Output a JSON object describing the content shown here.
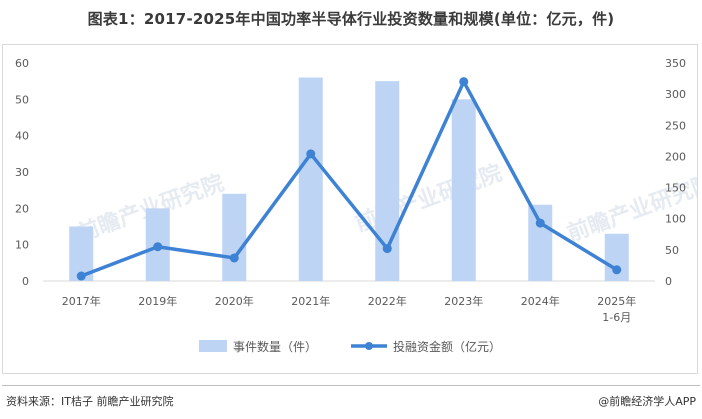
{
  "title": "图表1：2017-2025年中国功率半导体行业投资数量和规模(单位：亿元，件)",
  "source": "资料来源：IT桔子 前瞻产业研究院",
  "brand": "@前瞻经济学人APP",
  "watermark": "前瞻产业研究院",
  "colors": {
    "bar": "#bdd4f4",
    "line": "#3d82d4"
  },
  "chart_data": {
    "type": "bar+line",
    "categories": [
      [
        "2017年"
      ],
      [
        "2019年"
      ],
      [
        "2020年"
      ],
      [
        "2021年"
      ],
      [
        "2022年"
      ],
      [
        "2023年"
      ],
      [
        "2024年"
      ],
      [
        "2025年",
        "1-6月"
      ]
    ],
    "series": [
      {
        "name": "事件数量（件）",
        "type": "bar",
        "axis": "left",
        "values": [
          15,
          20,
          24,
          56,
          55,
          50,
          21,
          13
        ]
      },
      {
        "name": "投融资金额（亿元）",
        "type": "line",
        "axis": "right",
        "values": [
          8,
          55,
          37,
          204,
          52,
          320,
          93,
          18
        ]
      }
    ],
    "y_left": {
      "min": 0,
      "max": 60,
      "ticks": [
        0,
        10,
        20,
        30,
        40,
        50,
        60
      ]
    },
    "y_right": {
      "min": 0,
      "max": 350,
      "ticks": [
        0,
        50,
        100,
        150,
        200,
        250,
        300,
        350
      ]
    },
    "grid": false,
    "legend_position": "bottom"
  }
}
